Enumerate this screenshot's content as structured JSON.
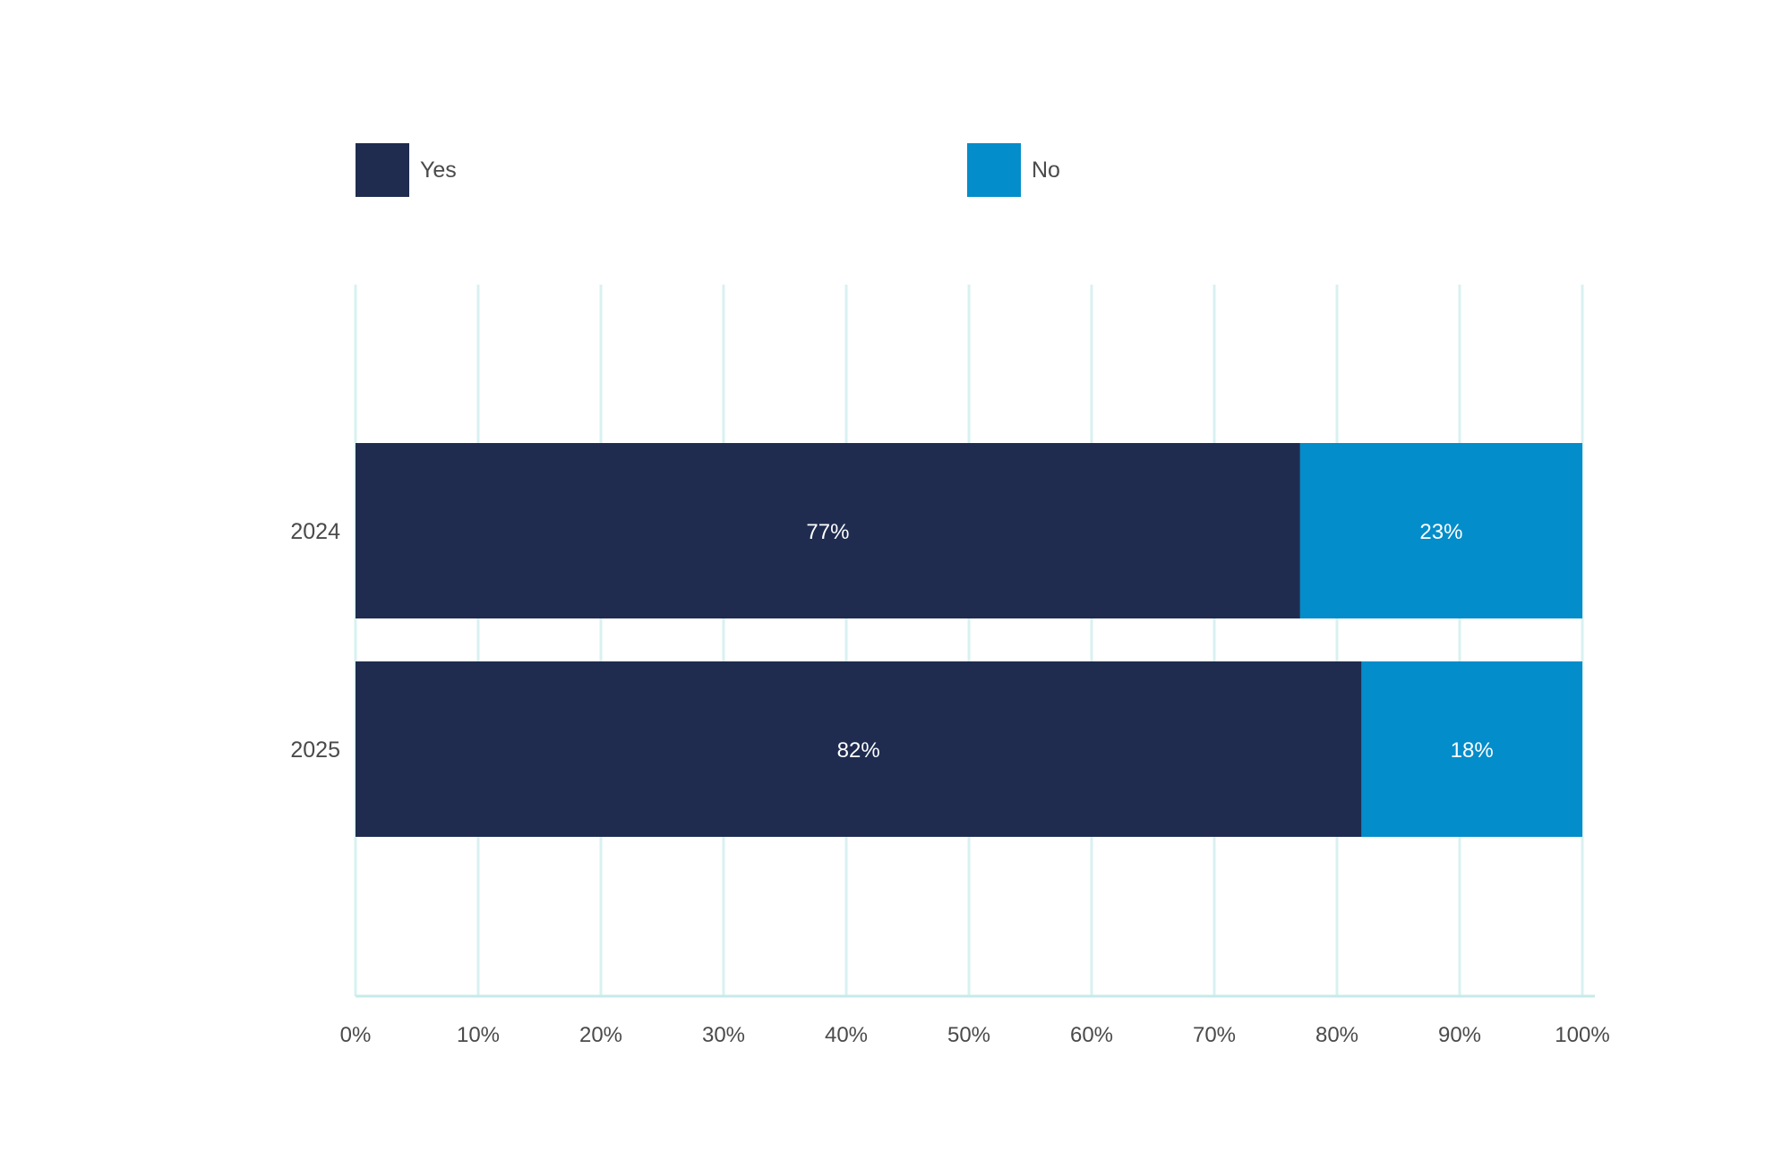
{
  "chart_data": {
    "type": "bar",
    "orientation": "horizontal",
    "stacked": true,
    "categories": [
      "2024",
      "2025"
    ],
    "series": [
      {
        "name": "Yes",
        "values": [
          77,
          82
        ],
        "labels": [
          "77%",
          "82%"
        ],
        "color": "#1f2c50"
      },
      {
        "name": "No",
        "values": [
          23,
          18
        ],
        "labels": [
          "23%",
          "18%"
        ],
        "color": "#038dca"
      }
    ],
    "xlim": [
      0,
      100
    ],
    "xticks": [
      "0%",
      "10%",
      "20%",
      "30%",
      "40%",
      "50%",
      "60%",
      "70%",
      "80%",
      "90%",
      "100%"
    ],
    "grid": true,
    "grid_color": "#d9f1f0",
    "legend_position": "top"
  }
}
